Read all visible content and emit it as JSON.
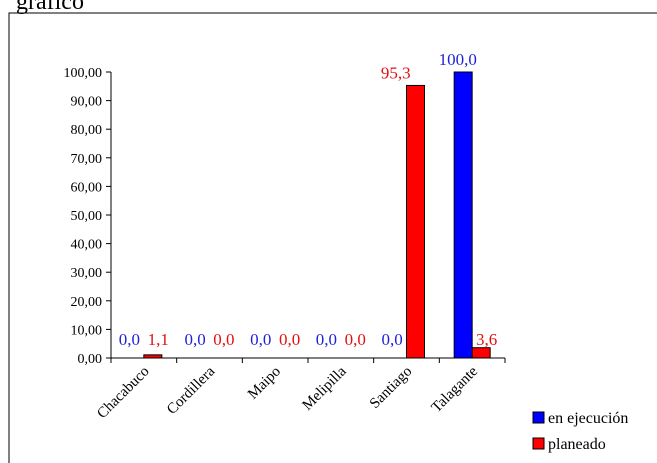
{
  "chart_data": {
    "type": "bar",
    "title": "",
    "xlabel": "",
    "ylabel": "",
    "categories": [
      "Chacabuco",
      "Cordillera",
      "Maipo",
      "Melipilla",
      "Santiago",
      "Talagante"
    ],
    "series": [
      {
        "name": "en ejecución",
        "color": "#0000ff",
        "label_color": "#1f1fd6",
        "values": [
          0.0,
          0.0,
          0.0,
          0.0,
          0.0,
          100.0
        ],
        "labels": [
          "0,0",
          "0,0",
          "0,0",
          "0,0",
          "0,0",
          "100,0"
        ]
      },
      {
        "name": "planeado",
        "color": "#ff0000",
        "label_color": "#e01010",
        "values": [
          1.1,
          0.0,
          0.0,
          0.0,
          95.3,
          3.6
        ],
        "labels": [
          "1,1",
          "0,0",
          "0,0",
          "0,0",
          "95,3",
          "3,6"
        ]
      }
    ],
    "ylim": [
      0,
      100
    ],
    "yticks": [
      "0,00",
      "10,00",
      "20,00",
      "30,00",
      "40,00",
      "50,00",
      "60,00",
      "70,00",
      "80,00",
      "90,00",
      "100,00"
    ],
    "grid": false,
    "legend_position": "bottom-right",
    "header_fragment": "gráfico"
  }
}
